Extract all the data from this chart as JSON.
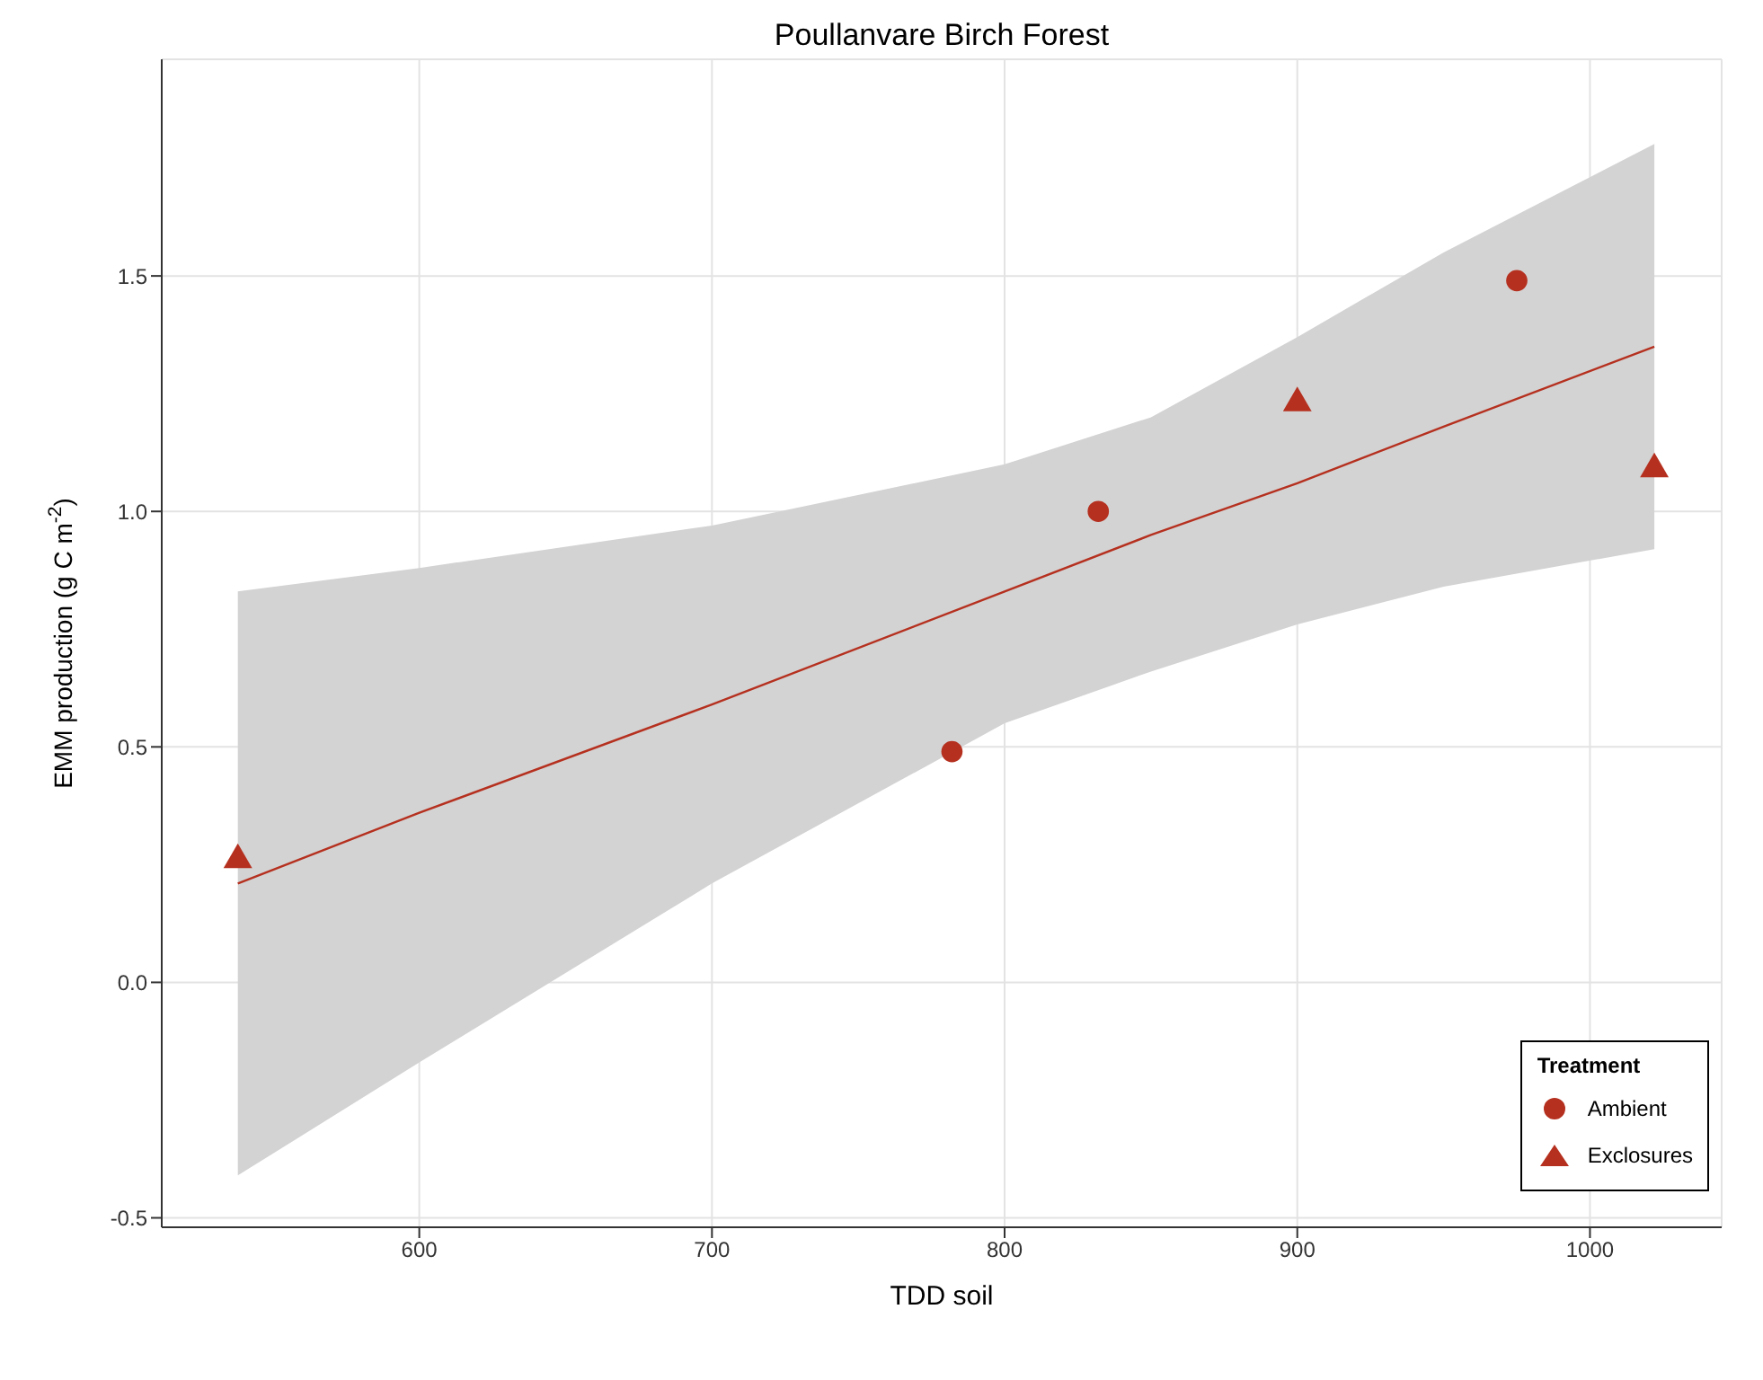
{
  "chart_data": {
    "type": "scatter",
    "title": "Poullanvare Birch Forest",
    "xlabel": "TDD soil",
    "ylabel": "EMM production (g C m$^{-2}$)",
    "legend_title": "Treatment",
    "legend": "bottom right",
    "grid": true,
    "xlim": [
      512,
      1045
    ],
    "xticks": [
      600,
      700,
      800,
      900,
      1000
    ],
    "ylim": [
      -0.52,
      1.96
    ],
    "yticks": [
      {
        "value": -0.5,
        "label": "-0.5"
      },
      {
        "value": 0,
        "label": "0.0"
      },
      {
        "value": 0.5,
        "label": "0.5"
      },
      {
        "value": 1,
        "label": "1.0"
      },
      {
        "value": 1.5,
        "label": "1.5"
      }
    ],
    "series": [
      {
        "name": "Ambient",
        "marker": "circle",
        "color": "#b5301f",
        "x": [
          782,
          832,
          975
        ],
        "values": [
          0.49,
          1.0,
          1.49
        ]
      },
      {
        "name": "Exclosures",
        "marker": "triangle",
        "color": "#b5301f",
        "x": [
          538,
          900,
          1022
        ],
        "values": [
          0.26,
          1.23,
          1.09
        ]
      },
      {
        "type": "line",
        "marker": "none",
        "color": "#b5301f",
        "x": [
          538,
          600,
          700,
          800,
          850,
          900,
          950,
          1022
        ],
        "values": [
          0.21,
          0.36,
          0.59,
          0.83,
          0.95,
          1.06,
          1.18,
          1.35
        ],
        "lower": [
          -0.41,
          -0.17,
          0.21,
          0.55,
          0.66,
          0.76,
          0.84,
          0.92
        ],
        "upper": [
          0.83,
          0.88,
          0.97,
          1.1,
          1.2,
          1.37,
          1.55,
          1.78
        ]
      }
    ]
  }
}
